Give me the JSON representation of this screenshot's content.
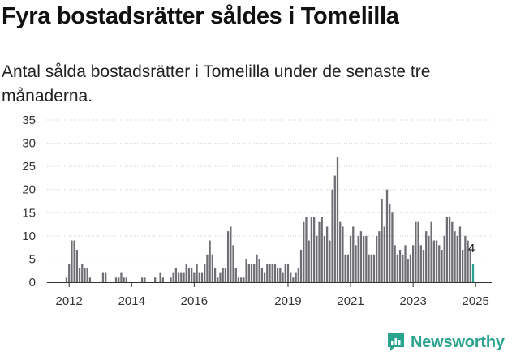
{
  "header": {
    "title": "Fyra bostadsrätter såldes i Tomelilla",
    "subtitle": "Antal sålda bostadsrätter i Tomelilla under de senaste tre månaderna."
  },
  "brand": {
    "name": "Newsworthy",
    "color": "#2aa48f"
  },
  "colors": {
    "bar": "#6f6e74",
    "highlight": "#2aa48f",
    "grid": "#d0d0d0",
    "axis": "#333333"
  },
  "chart_data": {
    "type": "bar",
    "title": "Fyra bostadsrätter såldes i Tomelilla",
    "xlabel": "",
    "ylabel": "",
    "ylim": [
      0,
      35
    ],
    "yticks": [
      0,
      5,
      10,
      15,
      20,
      25,
      30,
      35
    ],
    "xticks": [
      "2012",
      "2014",
      "2016",
      "2019",
      "2021",
      "2023",
      "2025"
    ],
    "x_start": "2011-12",
    "x_end": "2025-01",
    "x_tick_positions": [
      2012,
      2014,
      2016,
      2019,
      2021,
      2023,
      2025
    ],
    "annotation": {
      "label": "4",
      "value": 4,
      "target": "last"
    },
    "values": [
      1,
      4,
      9,
      9,
      7,
      3,
      4,
      3,
      3,
      1,
      0,
      0,
      0,
      0,
      2,
      2,
      0,
      0,
      0,
      1,
      1,
      2,
      1,
      1,
      0,
      0,
      0,
      0,
      0,
      1,
      1,
      0,
      0,
      0,
      1,
      0,
      2,
      1,
      0,
      0,
      1,
      2,
      3,
      2,
      2,
      2,
      4,
      3,
      3,
      2,
      4,
      2,
      2,
      4,
      6,
      9,
      6,
      3,
      1,
      2,
      3,
      3,
      11,
      12,
      8,
      3,
      1,
      1,
      1,
      5,
      4,
      4,
      4,
      6,
      5,
      3,
      2,
      4,
      4,
      4,
      4,
      3,
      3,
      2,
      4,
      4,
      2,
      1,
      2,
      3,
      7,
      13,
      14,
      9,
      14,
      14,
      10,
      13,
      14,
      10,
      12,
      9,
      20,
      23,
      27,
      13,
      12,
      6,
      6,
      10,
      12,
      8,
      10,
      11,
      10,
      10,
      6,
      6,
      6,
      10,
      11,
      18,
      12,
      20,
      17,
      15,
      8,
      6,
      7,
      6,
      8,
      5,
      6,
      8,
      13,
      13,
      8,
      7,
      11,
      10,
      13,
      9,
      9,
      8,
      7,
      10,
      14,
      14,
      13,
      11,
      10,
      12,
      7,
      10,
      9,
      7,
      4
    ]
  }
}
